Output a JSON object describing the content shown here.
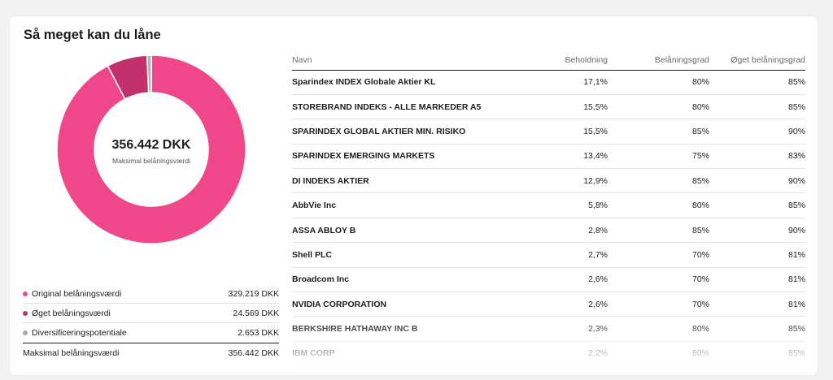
{
  "card": {
    "title": "Så meget kan du låne"
  },
  "donut": {
    "total": "356.442 DKK",
    "subtitle": "Maksimal belåningsværdi"
  },
  "chart_data": {
    "type": "pie",
    "categories": [
      "Original belåningsværdi",
      "Øget belåningsværdi",
      "Diversificeringspotentiale"
    ],
    "values": [
      329219,
      24569,
      2653
    ],
    "colors": [
      "#f0468a",
      "#c2306e",
      "#b4b4b8"
    ]
  },
  "legend": {
    "items": [
      {
        "label": "Original belåningsværdi",
        "value": "329.219 DKK",
        "color": "#f0468a"
      },
      {
        "label": "Øget belåningsværdi",
        "value": "24.569 DKK",
        "color": "#c2306e"
      },
      {
        "label": "Diversificeringspotentiale",
        "value": "2.653 DKK",
        "color": "#a6a6aa"
      }
    ],
    "total_label": "Maksimal belåningsværdi",
    "total_value": "356.442 DKK"
  },
  "table": {
    "headers": {
      "name": "Navn",
      "holding": "Beholdning",
      "rate": "Belåningsgrad",
      "increased_rate": "Øget belåningsgrad"
    },
    "rows": [
      {
        "name": "Sparindex INDEX Globale Aktier KL",
        "holding": "17,1%",
        "rate": "80%",
        "increased_rate": "85%"
      },
      {
        "name": "STOREBRAND INDEKS - ALLE MARKEDER A5",
        "holding": "15,5%",
        "rate": "80%",
        "increased_rate": "85%"
      },
      {
        "name": "SPARINDEX GLOBAL AKTIER MIN. RISIKO",
        "holding": "15,5%",
        "rate": "85%",
        "increased_rate": "90%"
      },
      {
        "name": "SPARINDEX EMERGING MARKETS",
        "holding": "13,4%",
        "rate": "75%",
        "increased_rate": "83%"
      },
      {
        "name": "DI INDEKS AKTIER",
        "holding": "12,9%",
        "rate": "85%",
        "increased_rate": "90%"
      },
      {
        "name": "AbbVie Inc",
        "holding": "5,8%",
        "rate": "80%",
        "increased_rate": "85%"
      },
      {
        "name": "ASSA ABLOY B",
        "holding": "2,8%",
        "rate": "85%",
        "increased_rate": "90%"
      },
      {
        "name": "Shell PLC",
        "holding": "2,7%",
        "rate": "70%",
        "increased_rate": "81%"
      },
      {
        "name": "Broadcom Inc",
        "holding": "2,6%",
        "rate": "70%",
        "increased_rate": "81%"
      },
      {
        "name": "NVIDIA CORPORATION",
        "holding": "2,6%",
        "rate": "70%",
        "increased_rate": "81%"
      },
      {
        "name": "BERKSHIRE HATHAWAY INC B",
        "holding": "2,3%",
        "rate": "80%",
        "increased_rate": "85%"
      },
      {
        "name": "IBM CORP",
        "holding": "2,2%",
        "rate": "80%",
        "increased_rate": "85%"
      }
    ]
  }
}
